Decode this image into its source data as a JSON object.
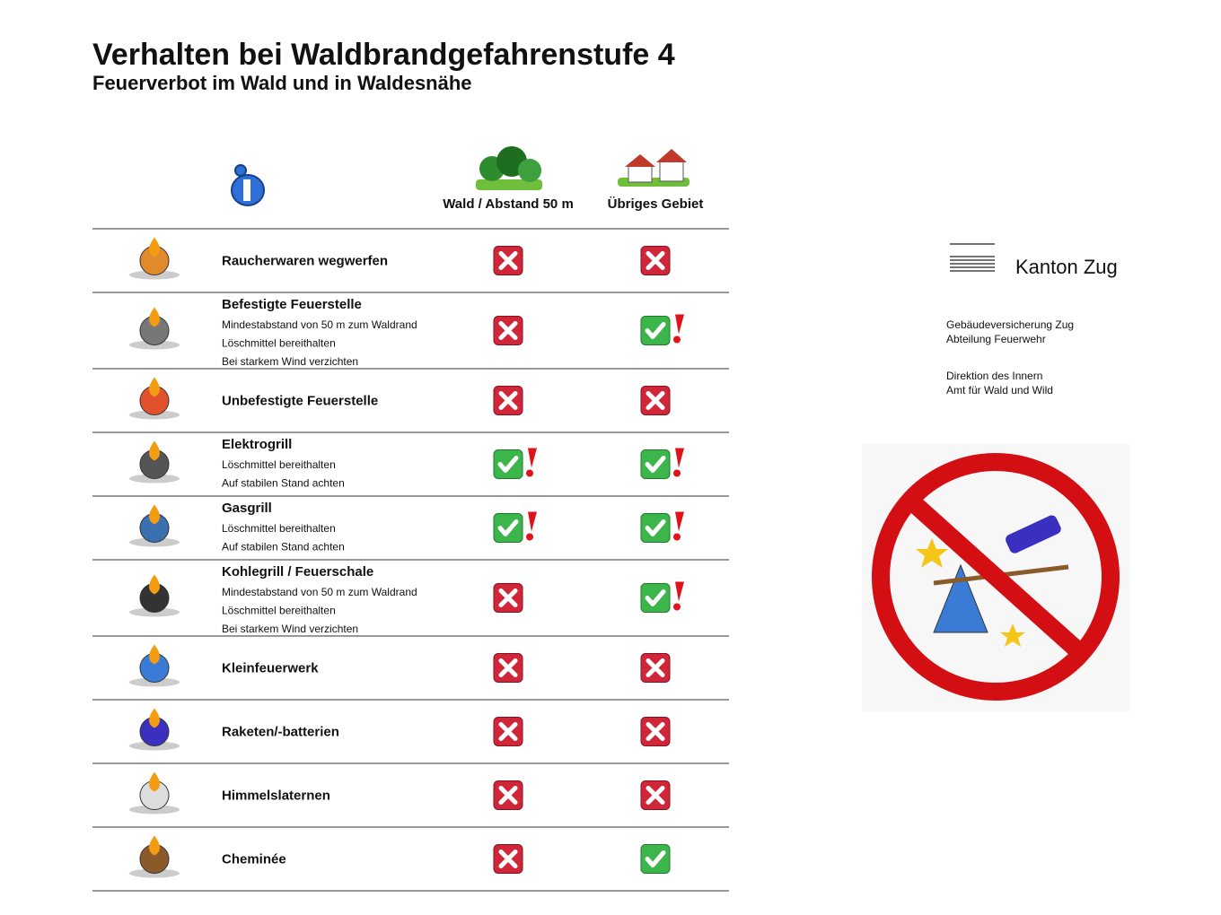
{
  "header": {
    "title": "Verhalten bei Waldbrandgefahrenstufe 4",
    "subtitle": "Feuerverbot im Wald und in Waldesnähe"
  },
  "table": {
    "columns": [
      "Wald / Abstand 50 m",
      "Übriges Gebiet"
    ],
    "rows": [
      {
        "label": "Raucherwaren wegwerfen",
        "notes": [],
        "status": [
          "x",
          "x"
        ]
      },
      {
        "label": "Befestigte Feuerstelle",
        "notes": [
          "Mindestabstand von 50 m zum Waldrand",
          "Löschmittel bereithalten",
          "Bei starkem Wind verzichten"
        ],
        "status": [
          "x",
          "check!"
        ]
      },
      {
        "label": "Unbefestigte Feuerstelle",
        "notes": [],
        "status": [
          "x",
          "x"
        ]
      },
      {
        "label": "Elektrogrill",
        "notes": [
          "Löschmittel bereithalten",
          "Auf stabilen Stand achten"
        ],
        "status": [
          "check!",
          "check!"
        ]
      },
      {
        "label": "Gasgrill",
        "notes": [
          "Löschmittel bereithalten",
          "Auf stabilen Stand achten"
        ],
        "status": [
          "check!",
          "check!"
        ]
      },
      {
        "label": "Kohlegrill / Feuerschale",
        "notes": [
          "Mindestabstand von 50 m zum Waldrand",
          "Löschmittel bereithalten",
          "Bei starkem Wind verzichten"
        ],
        "status": [
          "x",
          "check!"
        ]
      },
      {
        "label": "Kleinfeuerwerk",
        "notes": [],
        "status": [
          "x",
          "x"
        ]
      },
      {
        "label": "Raketen/-batterien",
        "notes": [],
        "status": [
          "x",
          "x"
        ]
      },
      {
        "label": "Himmelslaternen",
        "notes": [],
        "status": [
          "x",
          "x"
        ]
      },
      {
        "label": "Cheminée",
        "notes": [],
        "status": [
          "x",
          "check"
        ]
      }
    ]
  },
  "sidebar": {
    "logo": "Kanton Zug",
    "blocks": [
      [
        "Gebäudeversicherung Zug",
        "Abteilung Feuerwehr"
      ],
      [
        "Direktion des Innern",
        "Amt für Wald und Wild"
      ]
    ]
  }
}
